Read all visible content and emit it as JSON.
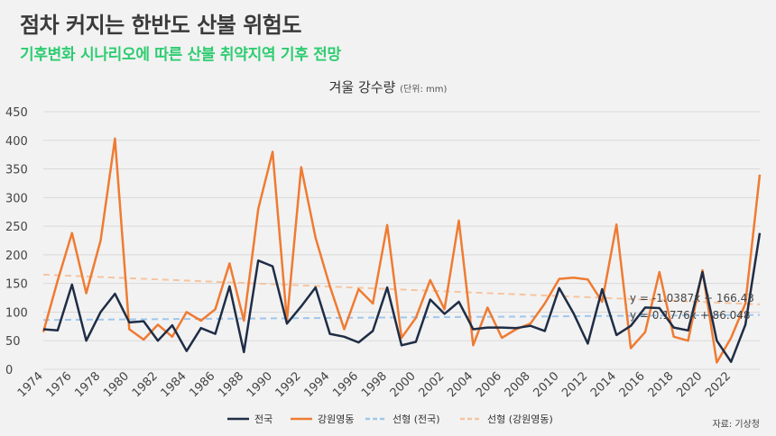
{
  "header": {
    "title": "점차 커지는 한반도 산불 위험도",
    "subtitle": "기후변화 시나리오에 따른 산불 취약지역 기후 전망"
  },
  "source": "자료: 기상청",
  "colors": {
    "national": "#1f2d45",
    "gangwon": "#ef7b32",
    "trend_national": "#9fc7ec",
    "trend_gangwon": "#f6c4a0",
    "subtitle": "#2ecc71"
  },
  "chart_data": {
    "type": "line",
    "title": "겨울 강수량",
    "unit": "(단위: mm)",
    "x": [
      1974,
      1975,
      1976,
      1977,
      1978,
      1979,
      1980,
      1981,
      1982,
      1983,
      1984,
      1985,
      1986,
      1987,
      1988,
      1989,
      1990,
      1991,
      1992,
      1993,
      1994,
      1995,
      1996,
      1997,
      1998,
      1999,
      2000,
      2001,
      2002,
      2003,
      2004,
      2005,
      2006,
      2007,
      2008,
      2009,
      2010,
      2011,
      2012,
      2013,
      2014,
      2015,
      2016,
      2017,
      2018,
      2019,
      2020,
      2021,
      2022,
      2023,
      2024
    ],
    "xticks": [
      "1974",
      "1976",
      "1978",
      "1980",
      "1982",
      "1984",
      "1986",
      "1988",
      "1990",
      "1992",
      "1994",
      "1996",
      "1998",
      "2000",
      "2002",
      "2004",
      "2006",
      "2008",
      "2010",
      "2012",
      "2014",
      "2016",
      "2018",
      "2020",
      "2022"
    ],
    "yticks": [
      "0",
      "50",
      "100",
      "150",
      "200",
      "250",
      "300",
      "350",
      "400",
      "450"
    ],
    "ylim": [
      0,
      450
    ],
    "grid": true,
    "legend_position": "bottom",
    "series": [
      {
        "name": "전국",
        "values": [
          70,
          68,
          148,
          50,
          100,
          132,
          82,
          84,
          50,
          77,
          32,
          72,
          62,
          145,
          30,
          190,
          180,
          80,
          110,
          143,
          62,
          57,
          47,
          67,
          143,
          42,
          48,
          122,
          97,
          118,
          70,
          73,
          73,
          72,
          76,
          67,
          142,
          98,
          45,
          140,
          60,
          76,
          108,
          107,
          73,
          68,
          170,
          50,
          13,
          78,
          238
        ]
      },
      {
        "name": "강원영동",
        "values": [
          65,
          155,
          238,
          133,
          225,
          403,
          70,
          52,
          78,
          57,
          100,
          85,
          105,
          185,
          85,
          280,
          380,
          85,
          353,
          230,
          145,
          70,
          140,
          115,
          252,
          55,
          90,
          156,
          105,
          260,
          42,
          108,
          55,
          70,
          80,
          115,
          158,
          160,
          157,
          118,
          253,
          37,
          65,
          170,
          57,
          50,
          173,
          12,
          55,
          115,
          340
        ]
      }
    ],
    "trendlines": [
      {
        "name": "선형 (전국)",
        "equation": "y = 0.1776x + 86.048",
        "slope": 0.1776,
        "intercept": 86.048
      },
      {
        "name": "선형 (강원영동)",
        "equation": "y = -1.0387x + 166.43",
        "slope": -1.0387,
        "intercept": 166.43
      }
    ]
  }
}
